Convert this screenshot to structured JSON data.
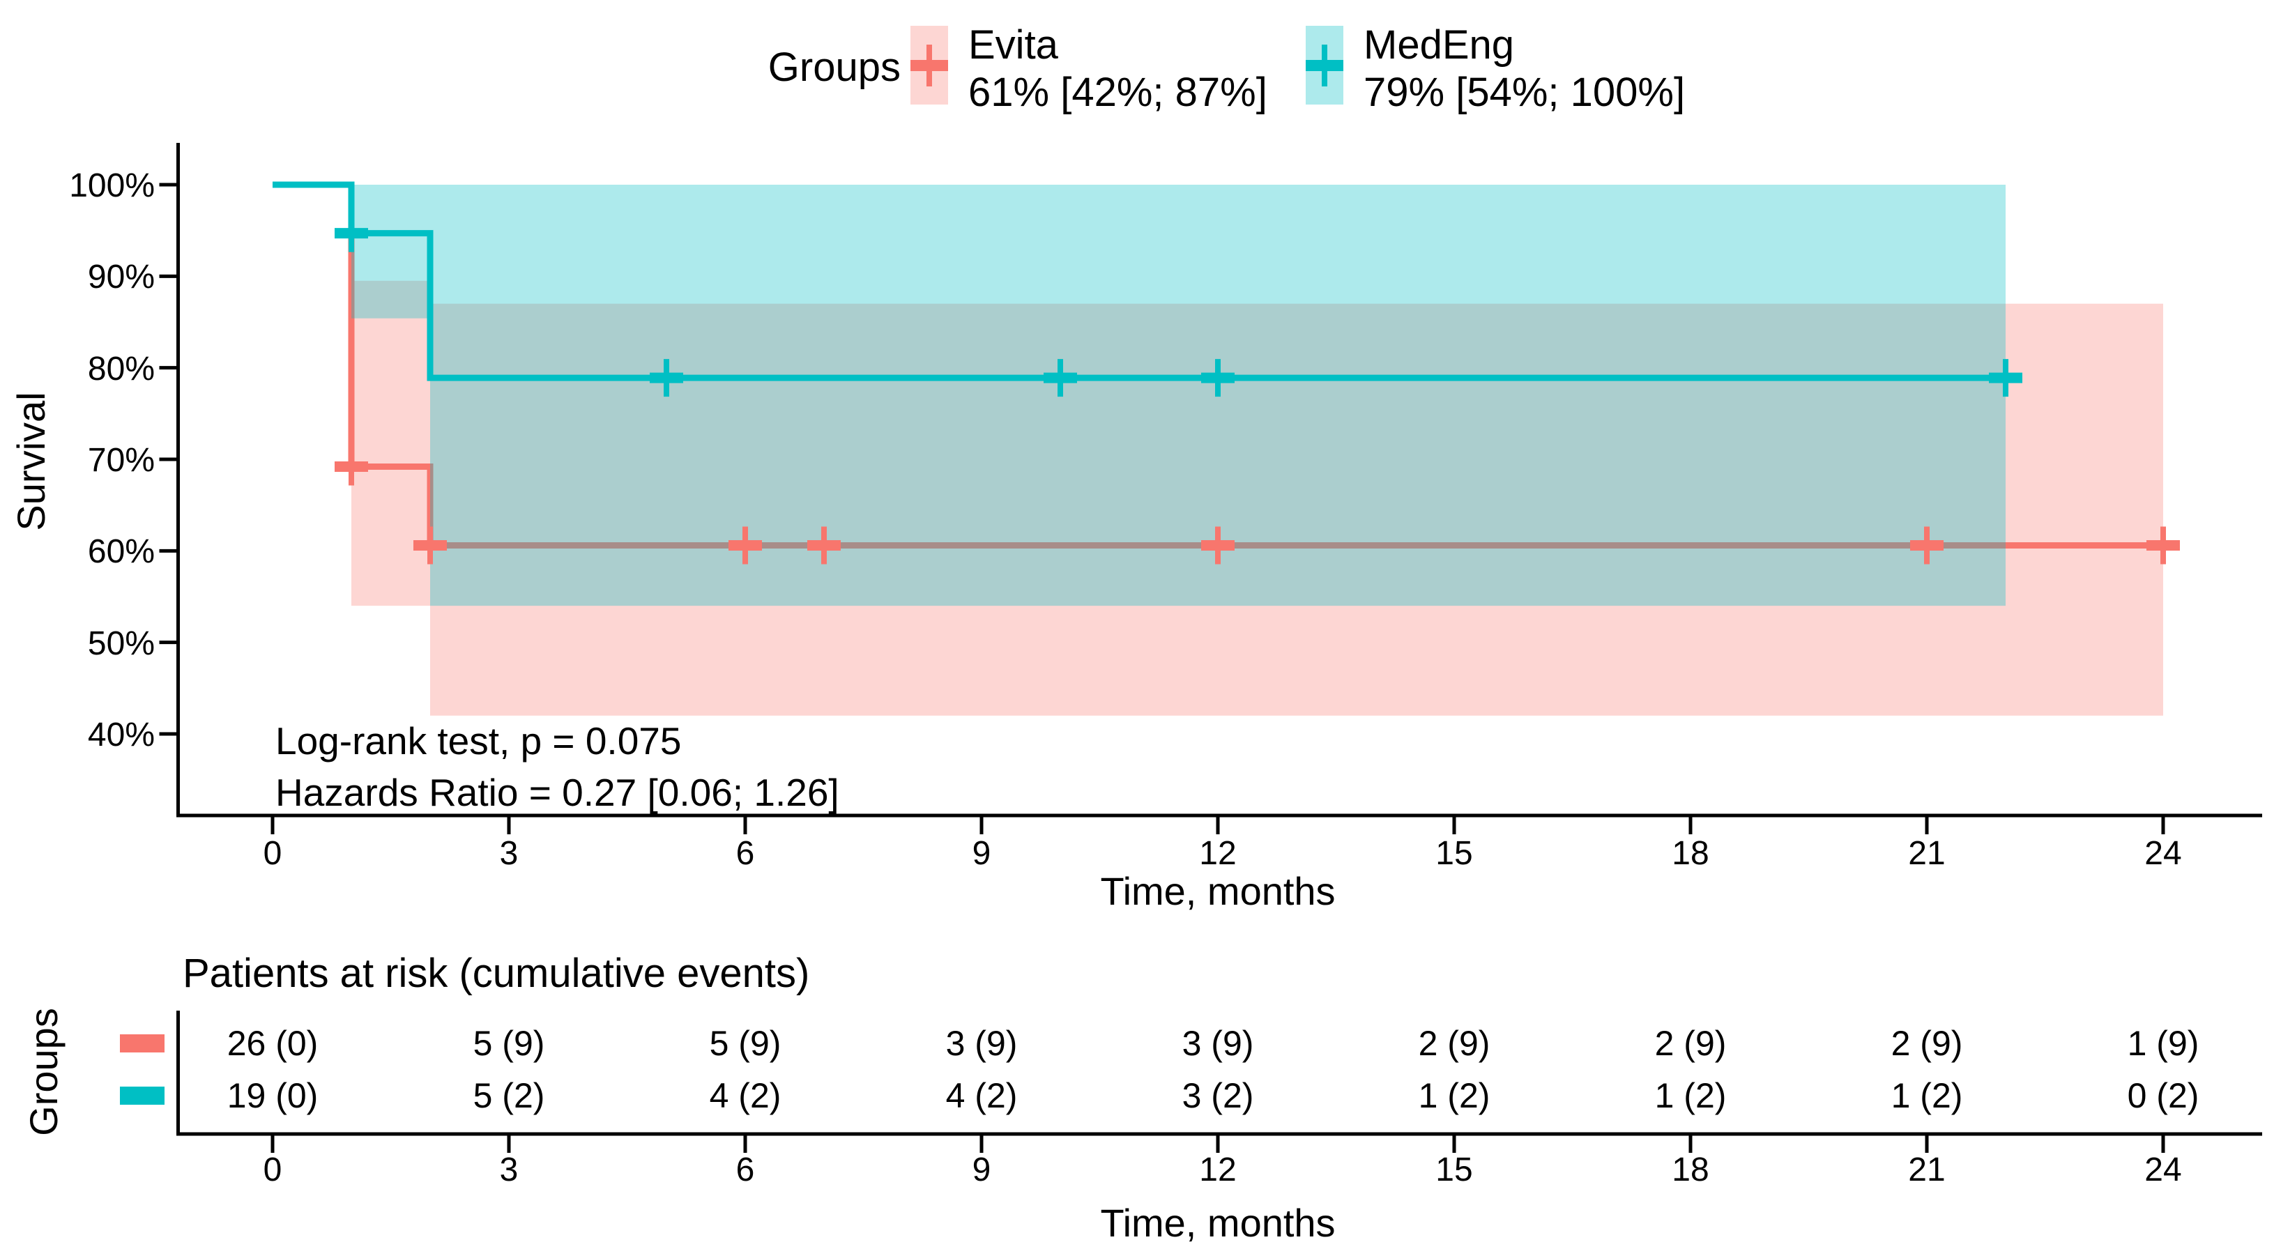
{
  "chart_data": {
    "type": "line",
    "subtype": "kaplan-meier-step-with-ci-ribbons",
    "title": "",
    "xlabel": "Time, months",
    "ylabel": "Survival",
    "xlim": [
      -1.2,
      25.2
    ],
    "ylim": [
      31,
      104.6
    ],
    "grid": "off",
    "legend_position": "top",
    "legend_title": "Groups",
    "x_ticks": [
      0,
      3,
      6,
      9,
      12,
      15,
      18,
      21,
      24
    ],
    "x_tick_labels": [
      "0",
      "3",
      "6",
      "9",
      "12",
      "15",
      "18",
      "21",
      "24"
    ],
    "y_ticks": [
      100,
      90,
      80,
      70,
      60,
      50,
      40
    ],
    "y_tick_labels": [
      "100%",
      "90%",
      "80%",
      "70%",
      "60%",
      "50%",
      "40%"
    ],
    "series": [
      {
        "name": "Evita",
        "estimate_label": "61% [42%; 87%]",
        "color": "#F8766D",
        "ci_fill": "rgba(248,118,109,0.30)",
        "step_points": [
          [
            0,
            100
          ],
          [
            1,
            69.2
          ],
          [
            2,
            60.6
          ],
          [
            24,
            60.6
          ]
        ],
        "censor_marks": [
          [
            1,
            69.2
          ],
          [
            2,
            60.6
          ],
          [
            6,
            60.6
          ],
          [
            7,
            60.6
          ],
          [
            12,
            60.6
          ],
          [
            21,
            60.6
          ],
          [
            24,
            60.6
          ]
        ],
        "ci_segments": [
          {
            "t0": 1,
            "t1": 2,
            "lower": 54,
            "upper": 89.5
          },
          {
            "t0": 2,
            "t1": 24,
            "lower": 42,
            "upper": 87
          }
        ]
      },
      {
        "name": "MedEng",
        "estimate_label": "79% [54%; 100%]",
        "color": "#00BFC4",
        "ci_fill": "rgba(0,191,196,0.32)",
        "step_points": [
          [
            0,
            100
          ],
          [
            1,
            94.7
          ],
          [
            2,
            78.9
          ],
          [
            22,
            78.9
          ]
        ],
        "censor_marks": [
          [
            1,
            94.7
          ],
          [
            5,
            78.9
          ],
          [
            10,
            78.9
          ],
          [
            12,
            78.9
          ],
          [
            22,
            78.9
          ]
        ],
        "ci_segments": [
          {
            "t0": 1,
            "t1": 2,
            "lower": 85.4,
            "upper": 100
          },
          {
            "t0": 2,
            "t1": 22,
            "lower": 54,
            "upper": 100
          }
        ]
      }
    ],
    "annotations": [
      "Log-rank test, p = 0.075",
      "Hazards Ratio = 0.27 [0.06; 1.26]"
    ]
  },
  "risk_table": {
    "title": "Patients at risk (cumulative events)",
    "ylabel": "Groups",
    "xlabel": "Time, months",
    "times": [
      "0",
      "3",
      "6",
      "9",
      "12",
      "15",
      "18",
      "21",
      "24"
    ],
    "rows": [
      {
        "name": "Evita",
        "color": "#F8766D",
        "values": [
          "26 (0)",
          "5 (9)",
          "5 (9)",
          "3 (9)",
          "3 (9)",
          "2 (9)",
          "2 (9)",
          "2 (9)",
          "1 (9)"
        ]
      },
      {
        "name": "MedEng",
        "color": "#00BFC4",
        "values": [
          "19 (0)",
          "5 (2)",
          "4 (2)",
          "4 (2)",
          "3 (2)",
          "1 (2)",
          "1 (2)",
          "1 (2)",
          "0 (2)"
        ]
      }
    ]
  }
}
